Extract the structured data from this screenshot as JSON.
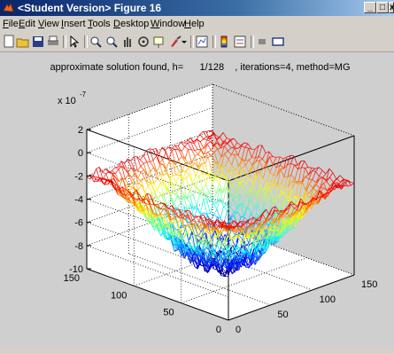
{
  "window": {
    "title": "<Student Version> Figure 16",
    "minimize_label": "_",
    "restore_label": "□",
    "close_label": "x"
  },
  "menu": [
    "File",
    "Edit",
    "View",
    "Insert",
    "Tools",
    "Desktop",
    "Window",
    "Help"
  ],
  "toolbar": {
    "icons": [
      "new-figure-icon",
      "open-file-icon",
      "save-icon",
      "print-icon",
      "pointer-icon",
      "zoom-in-icon",
      "zoom-out-icon",
      "pan-icon",
      "rotate-3d-icon",
      "data-cursor-icon",
      "brush-icon",
      "link-plot-icon",
      "colorbar-icon",
      "legend-icon",
      "hide-plot-tools-icon",
      "show-plot-tools-icon"
    ]
  },
  "chart_data": {
    "type": "surface",
    "title": "approximate solution found, h=      1/128    , iterations=4, method=MG",
    "exponent_label": "x 10",
    "exponent_power": "-7",
    "zlim": [
      -10,
      2
    ],
    "z_ticks": [
      "2",
      "0",
      "-2",
      "-4",
      "-6",
      "-8",
      "-10"
    ],
    "x_ticks": [
      "0",
      "50",
      "100",
      "150"
    ],
    "y_ticks": [
      "0",
      "50",
      "100",
      "150"
    ],
    "xlim": [
      0,
      150
    ],
    "ylim": [
      0,
      150
    ],
    "grid": true,
    "colormap": "jet",
    "surface_description_values": {
      "rim_z": -2,
      "min_z": -9.5,
      "noise_amplitude": 0.8
    }
  }
}
